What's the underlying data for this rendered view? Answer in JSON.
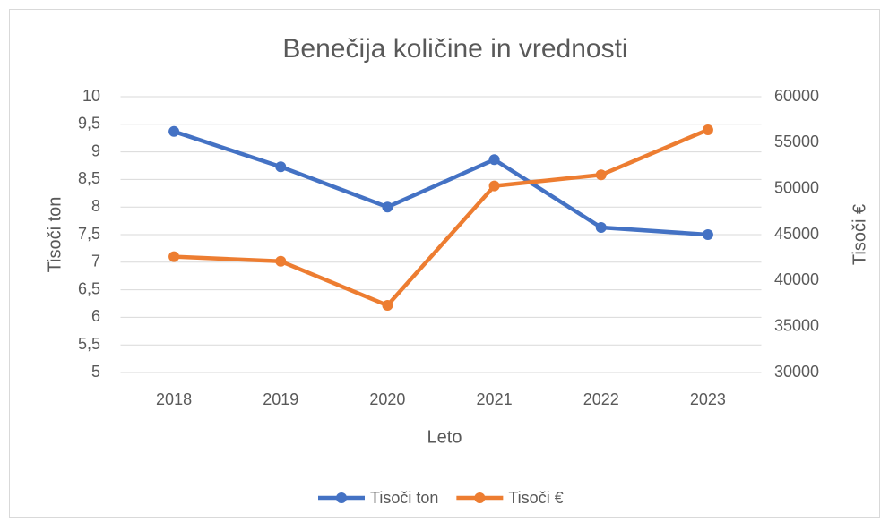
{
  "chart_data": {
    "type": "line",
    "title": "Benečija količine in vrednosti",
    "x_label": "Leto",
    "y_label": "Tisoči ton",
    "y2_label": "Tisoči €",
    "categories": [
      "2018",
      "2019",
      "2020",
      "2021",
      "2022",
      "2023"
    ],
    "series": [
      {
        "name": "Tisoči ton",
        "color": "#4472c4",
        "values": [
          9.37,
          8.73,
          8.0,
          8.86,
          7.63,
          7.5
        ]
      },
      {
        "name": "Tisoči €",
        "color": "#ed7d31",
        "axis": "y2",
        "values": [
          42600,
          42100,
          37300,
          50300,
          51500,
          56400
        ]
      }
    ],
    "ylim": [
      5,
      10
    ],
    "yticks": [
      5,
      {
        "value": 5.5,
        "label": "5,5"
      },
      6,
      {
        "value": 6.5,
        "label": "6,5"
      },
      7,
      {
        "value": 7.5,
        "label": "7,5"
      },
      8,
      {
        "value": 8.5,
        "label": "8,5"
      },
      9,
      {
        "value": 9.5,
        "label": "9,5"
      },
      10
    ],
    "y2lim": [
      30000,
      60000
    ],
    "y2ticks": [
      30000,
      35000,
      40000,
      45000,
      50000,
      55000,
      60000
    ],
    "grid": true,
    "legend": "bottom"
  }
}
